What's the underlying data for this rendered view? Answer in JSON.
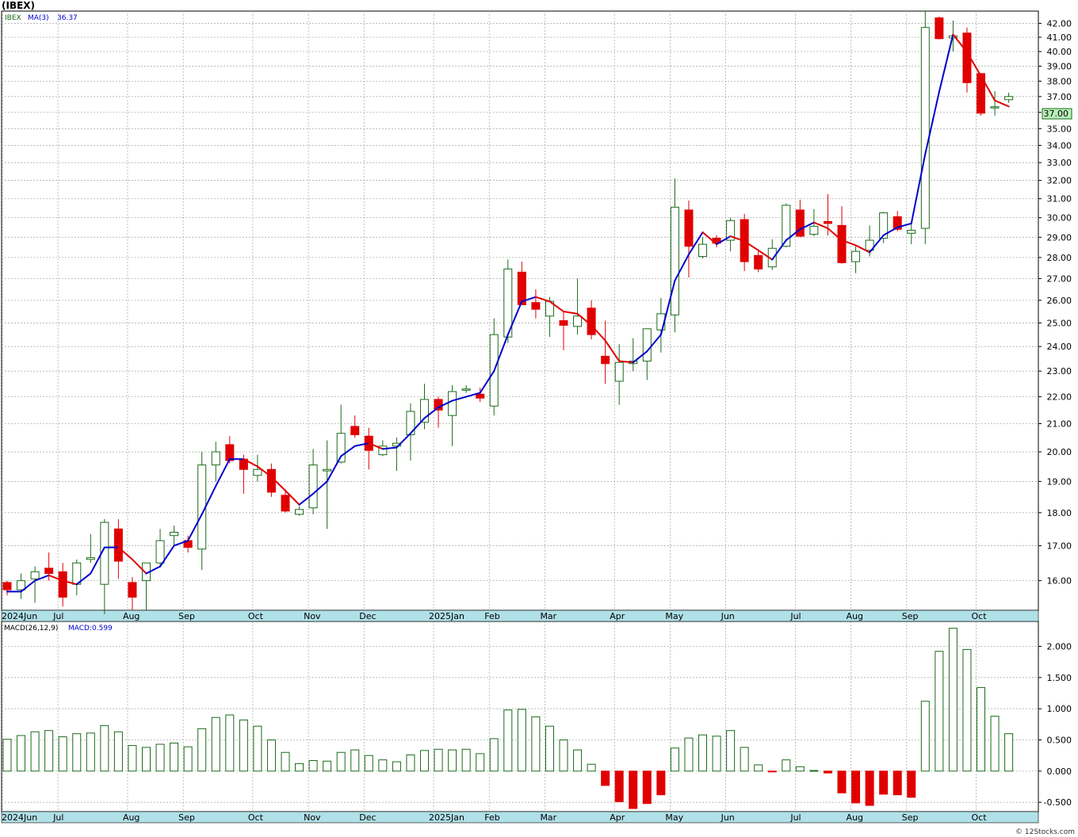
{
  "symbol_title": "(IBEX)",
  "watermark": "© 12Stocks.com",
  "price_panel": {
    "ticker_label": "IBEX",
    "ma_label": "MA(3)",
    "ma_value": "36.37",
    "last_price": "37.00"
  },
  "macd_panel": {
    "label": "MACD(26,12,9)",
    "value_label": "MACD:0.599"
  },
  "colors": {
    "up": "#1a6b1a",
    "down": "#e00000",
    "ma_up": "#0000cc",
    "ma_down": "#e00000",
    "axis_band": "#b0e0e8",
    "last_price_bg": "#b8f0b8"
  },
  "chart_data": [
    {
      "type": "candlestick",
      "interval": "weekly",
      "y_axis_scale": "log",
      "ylim": [
        15.2,
        42.9
      ],
      "y_ticks": [
        16.0,
        17.0,
        18.0,
        19.0,
        20.0,
        21.0,
        22.0,
        23.0,
        24.0,
        25.0,
        26.0,
        27.0,
        28.0,
        29.0,
        30.0,
        31.0,
        32.0,
        33.0,
        34.0,
        35.0,
        36.0,
        37.0,
        38.0,
        39.0,
        40.0,
        41.0,
        42.0
      ],
      "x_labels": [
        "2024Jun",
        "Jul",
        "Aug",
        "Sep",
        "Oct",
        "Nov",
        "Dec",
        "2025Jan",
        "Feb",
        "Mar",
        "Apr",
        "May",
        "Jun",
        "Jul",
        "Aug",
        "Sep",
        "Oct"
      ],
      "label_week_index": [
        0,
        4,
        9,
        13,
        18,
        22,
        26,
        31,
        35,
        39,
        44,
        48,
        52,
        57,
        61,
        65,
        70
      ],
      "ohlc": [
        [
          15.95,
          16.0,
          15.6,
          15.75
        ],
        [
          15.75,
          16.2,
          15.5,
          16.0
        ],
        [
          16.05,
          16.4,
          15.4,
          16.25
        ],
        [
          16.35,
          16.8,
          16.0,
          16.2
        ],
        [
          16.25,
          16.5,
          15.3,
          15.55
        ],
        [
          15.9,
          16.6,
          15.6,
          16.5
        ],
        [
          16.6,
          17.35,
          16.5,
          16.65
        ],
        [
          15.9,
          17.8,
          15.1,
          17.7
        ],
        [
          17.5,
          17.8,
          16.05,
          16.55
        ],
        [
          15.95,
          16.1,
          15.2,
          15.55
        ],
        [
          16.0,
          16.5,
          15.2,
          16.5
        ],
        [
          16.5,
          17.5,
          16.4,
          17.15
        ],
        [
          17.3,
          17.6,
          17.0,
          17.4
        ],
        [
          17.15,
          17.3,
          16.8,
          16.95
        ],
        [
          16.9,
          20.0,
          16.3,
          19.55
        ],
        [
          19.55,
          20.35,
          19.0,
          20.0
        ],
        [
          20.25,
          20.55,
          19.6,
          19.7
        ],
        [
          19.75,
          19.9,
          18.6,
          19.4
        ],
        [
          19.2,
          19.9,
          19.0,
          19.4
        ],
        [
          19.4,
          19.6,
          18.5,
          18.65
        ],
        [
          18.55,
          18.75,
          18.0,
          18.05
        ],
        [
          17.95,
          18.2,
          17.9,
          18.1
        ],
        [
          18.15,
          20.1,
          17.95,
          19.55
        ],
        [
          19.35,
          20.4,
          17.5,
          19.4
        ],
        [
          19.65,
          21.7,
          19.6,
          20.65
        ],
        [
          20.9,
          21.3,
          20.5,
          20.6
        ],
        [
          20.55,
          20.85,
          19.4,
          20.05
        ],
        [
          19.9,
          20.4,
          19.85,
          20.2
        ],
        [
          20.2,
          20.5,
          19.35,
          20.3
        ],
        [
          20.6,
          21.75,
          19.7,
          21.45
        ],
        [
          21.05,
          22.5,
          20.8,
          21.9
        ],
        [
          21.9,
          22.0,
          20.85,
          21.5
        ],
        [
          21.3,
          22.45,
          20.2,
          22.2
        ],
        [
          22.25,
          22.45,
          22.15,
          22.3
        ],
        [
          22.1,
          22.35,
          21.8,
          21.95
        ],
        [
          21.65,
          25.2,
          21.3,
          24.5
        ],
        [
          24.4,
          27.9,
          24.15,
          27.45
        ],
        [
          27.3,
          27.8,
          25.8,
          25.8
        ],
        [
          25.9,
          26.5,
          25.2,
          25.6
        ],
        [
          25.3,
          26.15,
          24.4,
          25.95
        ],
        [
          25.1,
          25.5,
          23.85,
          24.9
        ],
        [
          24.85,
          27.0,
          24.5,
          25.3
        ],
        [
          25.65,
          26.0,
          24.3,
          24.5
        ],
        [
          23.6,
          25.1,
          22.5,
          23.3
        ],
        [
          22.6,
          24.1,
          21.7,
          23.35
        ],
        [
          23.3,
          24.35,
          23.0,
          23.4
        ],
        [
          23.4,
          24.75,
          22.65,
          24.75
        ],
        [
          24.7,
          26.1,
          23.75,
          25.4
        ],
        [
          25.35,
          32.1,
          24.6,
          30.55
        ],
        [
          30.4,
          30.9,
          27.05,
          28.55
        ],
        [
          28.05,
          29.0,
          27.95,
          28.65
        ],
        [
          28.95,
          29.1,
          28.5,
          28.7
        ],
        [
          28.85,
          30.0,
          28.3,
          29.85
        ],
        [
          29.9,
          30.2,
          27.35,
          27.8
        ],
        [
          28.1,
          28.4,
          27.3,
          27.45
        ],
        [
          27.55,
          28.9,
          27.4,
          28.45
        ],
        [
          28.55,
          30.75,
          28.5,
          30.65
        ],
        [
          30.4,
          30.95,
          29.0,
          29.05
        ],
        [
          29.15,
          30.45,
          29.05,
          29.55
        ],
        [
          29.8,
          31.25,
          29.1,
          29.7
        ],
        [
          29.6,
          30.6,
          27.7,
          27.75
        ],
        [
          27.8,
          28.55,
          27.25,
          28.3
        ],
        [
          28.35,
          29.6,
          28.05,
          28.85
        ],
        [
          28.95,
          30.3,
          28.7,
          30.25
        ],
        [
          30.05,
          30.35,
          29.3,
          29.4
        ],
        [
          29.2,
          29.75,
          28.65,
          29.35
        ],
        [
          29.45,
          42.9,
          28.65,
          41.7
        ],
        [
          42.4,
          42.5,
          40.85,
          40.9
        ],
        [
          40.95,
          42.2,
          40.0,
          41.1
        ],
        [
          41.3,
          41.7,
          37.25,
          37.9
        ],
        [
          38.5,
          38.5,
          35.8,
          35.95
        ],
        [
          36.3,
          37.35,
          35.8,
          36.35
        ],
        [
          36.8,
          37.25,
          36.6,
          37.0
        ]
      ],
      "ma3": [
        15.7,
        15.7,
        16.0,
        16.15,
        16.0,
        15.9,
        16.2,
        16.95,
        16.95,
        16.6,
        16.2,
        16.4,
        17.0,
        17.15,
        17.95,
        18.85,
        19.75,
        19.75,
        19.5,
        19.15,
        18.7,
        18.25,
        18.6,
        19.0,
        19.85,
        20.2,
        20.3,
        20.1,
        20.15,
        20.65,
        21.2,
        21.6,
        21.85,
        22.0,
        22.15,
        23.0,
        24.5,
        25.95,
        26.15,
        25.95,
        25.5,
        25.4,
        24.9,
        24.25,
        23.4,
        23.35,
        23.8,
        24.5,
        26.9,
        28.15,
        29.25,
        28.65,
        29.05,
        28.8,
        28.35,
        27.9,
        28.85,
        29.4,
        29.75,
        29.45,
        28.85,
        28.6,
        28.25,
        29.1,
        29.5,
        29.7,
        33.5,
        37.3,
        41.2,
        39.95,
        38.35,
        36.75,
        36.37
      ],
      "last_price": 37.0
    },
    {
      "type": "bar",
      "name": "MACD(26,12,9)",
      "ylim": [
        -0.65,
        2.4
      ],
      "y_ticks": [
        -0.5,
        0.0,
        0.5,
        1.0,
        1.5,
        2.0
      ],
      "y_tick_labels": [
        "-0.500",
        "0.000",
        "0.500",
        "1.000",
        "1.500",
        "2.000"
      ],
      "values": [
        0.51,
        0.57,
        0.63,
        0.65,
        0.55,
        0.6,
        0.61,
        0.73,
        0.63,
        0.41,
        0.38,
        0.43,
        0.45,
        0.39,
        0.68,
        0.86,
        0.9,
        0.82,
        0.72,
        0.5,
        0.3,
        0.12,
        0.17,
        0.16,
        0.3,
        0.34,
        0.25,
        0.18,
        0.15,
        0.26,
        0.33,
        0.35,
        0.34,
        0.35,
        0.28,
        0.52,
        0.98,
        0.99,
        0.87,
        0.72,
        0.5,
        0.34,
        0.11,
        -0.23,
        -0.49,
        -0.6,
        -0.52,
        -0.38,
        0.37,
        0.53,
        0.58,
        0.56,
        0.65,
        0.38,
        0.1,
        -0.01,
        0.18,
        0.07,
        0.01,
        -0.03,
        -0.35,
        -0.51,
        -0.55,
        -0.37,
        -0.38,
        -0.42,
        1.12,
        1.92,
        2.29,
        1.95,
        1.34,
        0.88,
        0.6
      ]
    }
  ]
}
